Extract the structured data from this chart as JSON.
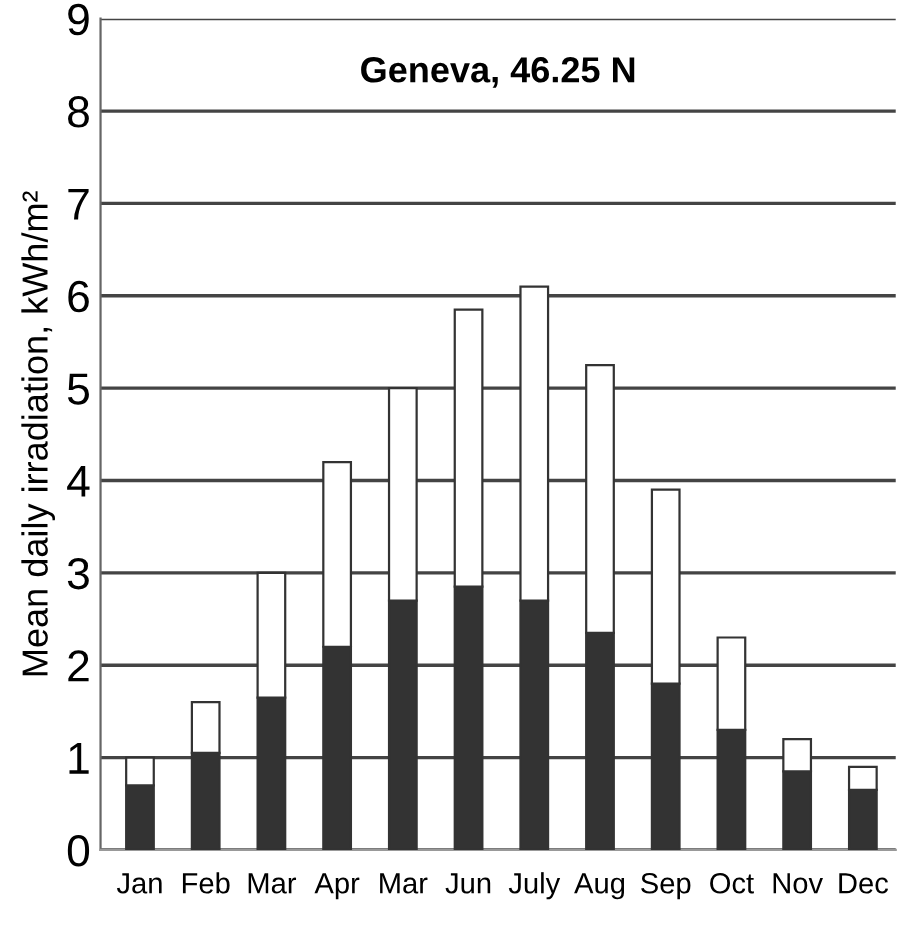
{
  "chart_data": {
    "type": "bar",
    "title": "Geneva, 46.25 N",
    "ylabel": "Mean daily irradiation, kWh/m²",
    "categories": [
      "Jan",
      "Feb",
      "Mar",
      "Apr",
      "Mar",
      "Jun",
      "July",
      "Aug",
      "Sep",
      "Oct",
      "Nov",
      "Dec"
    ],
    "stacked": true,
    "series": [
      {
        "color": "#333333",
        "values": [
          0.7,
          1.05,
          1.65,
          2.2,
          2.7,
          2.85,
          2.7,
          2.35,
          1.8,
          1.3,
          0.85,
          0.65
        ]
      },
      {
        "color": "#ffffff",
        "values": [
          0.3,
          0.55,
          1.35,
          2.0,
          2.3,
          3.0,
          3.4,
          2.9,
          2.1,
          1.0,
          0.35,
          0.25
        ]
      }
    ],
    "ylim": [
      0,
      9
    ],
    "yticks": [
      0,
      1,
      2,
      3,
      4,
      5,
      6,
      7,
      8,
      9
    ],
    "grid": "y"
  }
}
